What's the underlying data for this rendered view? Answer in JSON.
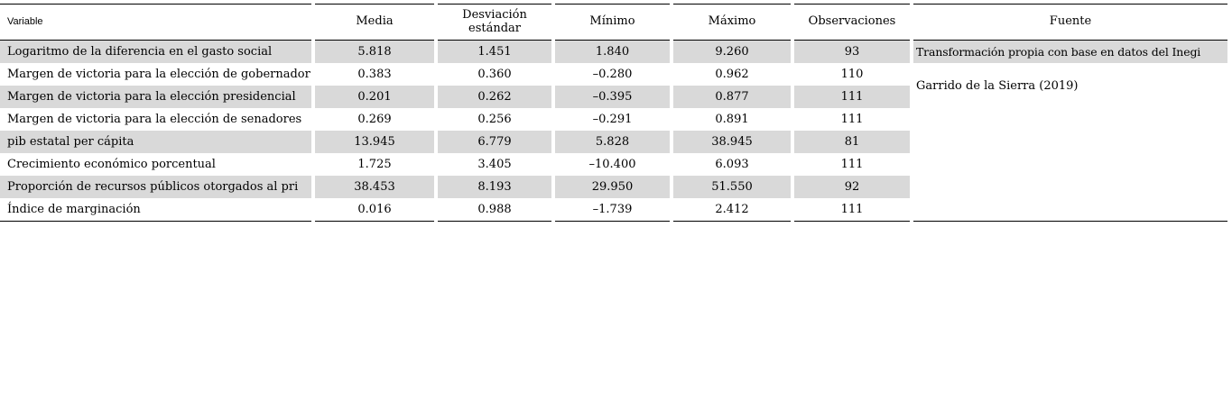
{
  "table": {
    "columns": [
      {
        "label": "Variable"
      },
      {
        "label": "Media"
      },
      {
        "label": "Desviación estándar"
      },
      {
        "label": "Mínimo"
      },
      {
        "label": "Máximo"
      },
      {
        "label": "Observaciones"
      },
      {
        "label": "Fuente"
      }
    ],
    "rows": [
      [
        "Logaritmo de la diferencia en el gasto social",
        "5.818",
        "1.451",
        "1.840",
        "9.260",
        "93"
      ],
      [
        "Margen de victoria para la elección de gobernador",
        "0.383",
        "0.360",
        "–0.280",
        "0.962",
        "110"
      ],
      [
        "Margen de victoria para la elección presidencial",
        "0.201",
        "0.262",
        "–0.395",
        "0.877",
        "111"
      ],
      [
        "Margen de victoria para la elección de senadores",
        "0.269",
        "0.256",
        "–0.291",
        "0.891",
        "111"
      ],
      [
        "pib estatal per cápita",
        "13.945",
        "6.779",
        "5.828",
        "38.945",
        "81"
      ],
      [
        "Crecimiento económico porcentual",
        "1.725",
        "3.405",
        "–10.400",
        "6.093",
        "111"
      ],
      [
        "Proporción de recursos públicos otorgados al pri",
        "38.453",
        "8.193",
        "29.950",
        "51.550",
        "92"
      ],
      [
        "Índice de marginación",
        "0.016",
        "0.988",
        "–1.739",
        "2.412",
        "111"
      ]
    ],
    "fuente_entries": [
      {
        "text": "Transformación propia con base en datos del Inegi"
      },
      {
        "text": "Garrido de la Sierra (2019)"
      }
    ]
  },
  "colors": {
    "row_shade": "#d9d9d9",
    "rule": "#000000"
  }
}
